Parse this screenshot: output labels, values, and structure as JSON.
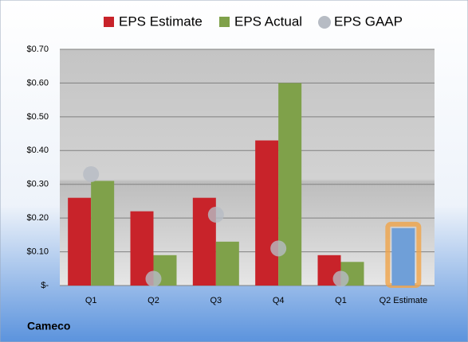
{
  "chart_data": {
    "type": "bar",
    "categories": [
      "Q1",
      "Q2",
      "Q3",
      "Q4",
      "Q1",
      "Q2 Estimate"
    ],
    "series": [
      {
        "name": "EPS Estimate",
        "color": "#c8232a",
        "values": [
          0.26,
          0.22,
          0.26,
          0.43,
          0.09,
          0.17
        ],
        "colors": [
          "#c8232a",
          "#c8232a",
          "#c8232a",
          "#c8232a",
          "#c8232a",
          "#6f9fd8"
        ],
        "edge_colors": [
          null,
          null,
          null,
          null,
          null,
          "#f0a448"
        ]
      },
      {
        "name": "EPS Actual",
        "color": "#7fa14a",
        "values": [
          0.31,
          0.09,
          0.13,
          0.6,
          0.07,
          null
        ]
      },
      {
        "name": "EPS GAAP",
        "color": "#b7bcc4",
        "marker": "circle",
        "values": [
          0.33,
          0.02,
          0.21,
          0.11,
          0.02,
          null
        ]
      }
    ],
    "ylim": [
      0,
      0.7
    ],
    "yticks": [
      {
        "value": 0,
        "label": "$-"
      },
      {
        "value": 0.1,
        "label": "$0.10"
      },
      {
        "value": 0.2,
        "label": "$0.20"
      },
      {
        "value": 0.3,
        "label": "$0.30"
      },
      {
        "value": 0.4,
        "label": "$0.40"
      },
      {
        "value": 0.5,
        "label": "$0.50"
      },
      {
        "value": 0.6,
        "label": "$0.60"
      },
      {
        "value": 0.7,
        "label": "$0.70"
      }
    ],
    "grid": true,
    "legend": "top",
    "footer": "Cameco"
  }
}
